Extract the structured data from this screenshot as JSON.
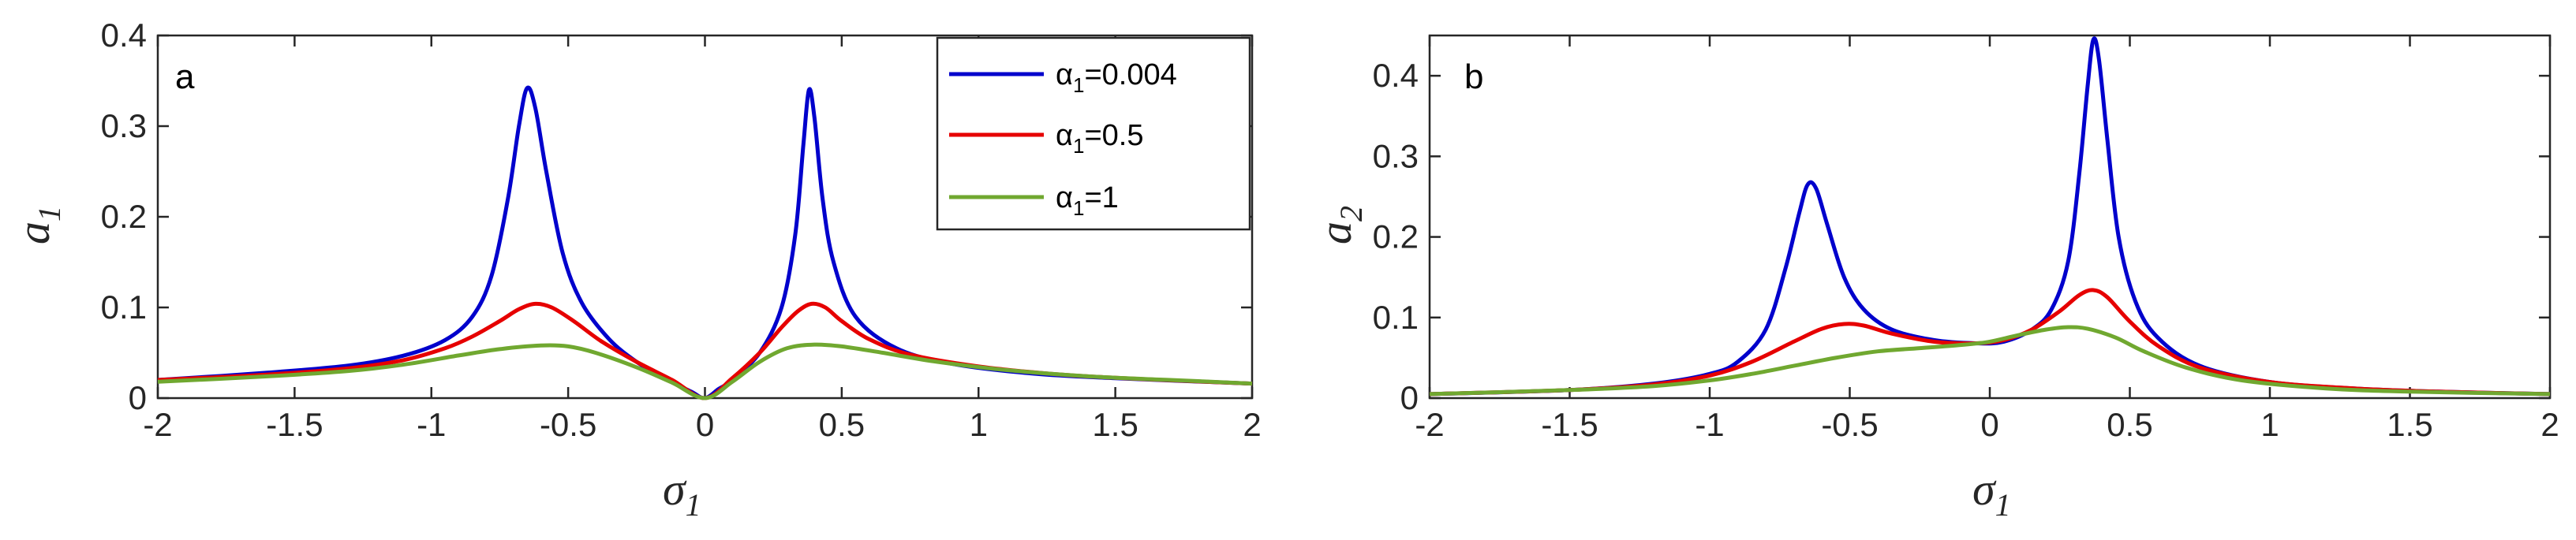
{
  "chart_data": [
    {
      "type": "line",
      "panel_label": "a",
      "xlabel": "σ",
      "xlabel_sub": "1",
      "ylabel": "a",
      "ylabel_sub": "1",
      "xlim": [
        -2,
        2
      ],
      "ylim": [
        0,
        0.4
      ],
      "x_ticks": [
        -2,
        -1.5,
        -1,
        -0.5,
        0,
        0.5,
        1,
        1.5,
        2
      ],
      "x_tick_labels": [
        "-2",
        "-1.5",
        "-1",
        "-0.5",
        "0",
        "0.5",
        "1",
        "1.5",
        "2"
      ],
      "y_ticks": [
        0,
        0.1,
        0.2,
        0.3,
        0.4
      ],
      "y_tick_labels": [
        "0",
        "0.1",
        "0.2",
        "0.3",
        "0.4"
      ],
      "legend_position": "top-right",
      "series": [
        {
          "name": "α1=0.004",
          "legend_main": "α",
          "legend_sub": "1",
          "legend_rest": "=0.004",
          "color": "#0000cc",
          "x": [
            -2,
            -1.6,
            -1.3,
            -1.1,
            -0.95,
            -0.85,
            -0.78,
            -0.72,
            -0.68,
            -0.65,
            -0.62,
            -0.58,
            -0.52,
            -0.45,
            -0.35,
            -0.25,
            -0.15,
            -0.05,
            0,
            0.05,
            0.1,
            0.2,
            0.28,
            0.33,
            0.36,
            0.38,
            0.4,
            0.43,
            0.47,
            0.55,
            0.7,
            0.9,
            1.2,
            1.5,
            2
          ],
          "y": [
            0.02,
            0.028,
            0.036,
            0.047,
            0.064,
            0.09,
            0.135,
            0.22,
            0.3,
            0.342,
            0.32,
            0.25,
            0.16,
            0.105,
            0.065,
            0.04,
            0.022,
            0.007,
            0,
            0.01,
            0.02,
            0.05,
            0.1,
            0.18,
            0.28,
            0.34,
            0.31,
            0.22,
            0.15,
            0.09,
            0.055,
            0.038,
            0.027,
            0.022,
            0.016
          ]
        },
        {
          "name": "α1=0.5",
          "legend_main": "α",
          "legend_sub": "1",
          "legend_rest": "=0.5",
          "color": "#e60000",
          "x": [
            -2,
            -1.6,
            -1.3,
            -1.1,
            -0.95,
            -0.85,
            -0.75,
            -0.68,
            -0.62,
            -0.56,
            -0.48,
            -0.38,
            -0.25,
            -0.12,
            0,
            0.1,
            0.2,
            0.28,
            0.34,
            0.39,
            0.44,
            0.5,
            0.6,
            0.75,
            1.0,
            1.3,
            1.6,
            2
          ],
          "y": [
            0.02,
            0.026,
            0.033,
            0.042,
            0.055,
            0.068,
            0.085,
            0.098,
            0.104,
            0.1,
            0.085,
            0.063,
            0.04,
            0.02,
            0,
            0.022,
            0.05,
            0.078,
            0.096,
            0.104,
            0.1,
            0.085,
            0.065,
            0.048,
            0.035,
            0.026,
            0.021,
            0.016
          ]
        },
        {
          "name": "α1=1",
          "legend_main": "α",
          "legend_sub": "1",
          "legend_rest": "=1",
          "color": "#70a830",
          "x": [
            -2,
            -1.6,
            -1.3,
            -1.1,
            -0.9,
            -0.75,
            -0.6,
            -0.5,
            -0.4,
            -0.25,
            -0.12,
            0,
            0.1,
            0.2,
            0.3,
            0.4,
            0.5,
            0.65,
            0.85,
            1.1,
            1.4,
            1.7,
            2
          ],
          "y": [
            0.018,
            0.024,
            0.03,
            0.037,
            0.047,
            0.054,
            0.058,
            0.057,
            0.05,
            0.034,
            0.017,
            0,
            0.018,
            0.04,
            0.055,
            0.059,
            0.057,
            0.05,
            0.04,
            0.031,
            0.024,
            0.02,
            0.016
          ]
        }
      ]
    },
    {
      "type": "line",
      "panel_label": "b",
      "xlabel": "σ",
      "xlabel_sub": "1",
      "ylabel": "a",
      "ylabel_sub": "2",
      "xlim": [
        -2,
        2
      ],
      "ylim": [
        0,
        0.45
      ],
      "x_ticks": [
        -2,
        -1.5,
        -1,
        -0.5,
        0,
        0.5,
        1,
        1.5,
        2
      ],
      "x_tick_labels": [
        "-2",
        "-1.5",
        "-1",
        "-0.5",
        "0",
        "0.5",
        "1",
        "1.5",
        "2"
      ],
      "y_ticks": [
        0,
        0.1,
        0.2,
        0.3,
        0.4
      ],
      "y_tick_labels": [
        "0",
        "0.1",
        "0.2",
        "0.3",
        "0.4"
      ],
      "series": [
        {
          "name": "α1=0.004",
          "color": "#0000cc",
          "x": [
            -2,
            -1.5,
            -1.2,
            -1.0,
            -0.9,
            -0.8,
            -0.73,
            -0.68,
            -0.65,
            -0.62,
            -0.58,
            -0.52,
            -0.45,
            -0.35,
            -0.2,
            -0.05,
            0.05,
            0.15,
            0.22,
            0.28,
            0.32,
            0.35,
            0.37,
            0.39,
            0.42,
            0.46,
            0.52,
            0.6,
            0.75,
            1.0,
            1.3,
            1.6,
            2
          ],
          "y": [
            0.005,
            0.01,
            0.018,
            0.03,
            0.045,
            0.085,
            0.16,
            0.23,
            0.265,
            0.26,
            0.215,
            0.15,
            0.11,
            0.085,
            0.072,
            0.068,
            0.07,
            0.085,
            0.11,
            0.17,
            0.28,
            0.39,
            0.445,
            0.42,
            0.32,
            0.2,
            0.12,
            0.075,
            0.04,
            0.02,
            0.012,
            0.008,
            0.005
          ]
        },
        {
          "name": "α1=0.5",
          "color": "#e60000",
          "x": [
            -2,
            -1.5,
            -1.2,
            -1.0,
            -0.85,
            -0.7,
            -0.6,
            -0.52,
            -0.45,
            -0.35,
            -0.2,
            -0.05,
            0.05,
            0.15,
            0.25,
            0.32,
            0.37,
            0.42,
            0.5,
            0.6,
            0.75,
            1.0,
            1.3,
            1.6,
            2
          ],
          "y": [
            0.005,
            0.01,
            0.017,
            0.028,
            0.045,
            0.07,
            0.086,
            0.092,
            0.09,
            0.08,
            0.07,
            0.068,
            0.072,
            0.085,
            0.108,
            0.128,
            0.134,
            0.125,
            0.095,
            0.065,
            0.038,
            0.02,
            0.012,
            0.008,
            0.005
          ]
        },
        {
          "name": "α1=1",
          "color": "#70a830",
          "x": [
            -2,
            -1.5,
            -1.2,
            -1.0,
            -0.85,
            -0.7,
            -0.55,
            -0.4,
            -0.25,
            -0.1,
            0,
            0.1,
            0.2,
            0.28,
            0.35,
            0.45,
            0.55,
            0.7,
            0.9,
            1.2,
            1.5,
            2
          ],
          "y": [
            0.005,
            0.01,
            0.015,
            0.022,
            0.03,
            0.04,
            0.05,
            0.058,
            0.062,
            0.066,
            0.07,
            0.078,
            0.085,
            0.088,
            0.086,
            0.075,
            0.058,
            0.038,
            0.022,
            0.012,
            0.008,
            0.005
          ]
        }
      ]
    }
  ]
}
